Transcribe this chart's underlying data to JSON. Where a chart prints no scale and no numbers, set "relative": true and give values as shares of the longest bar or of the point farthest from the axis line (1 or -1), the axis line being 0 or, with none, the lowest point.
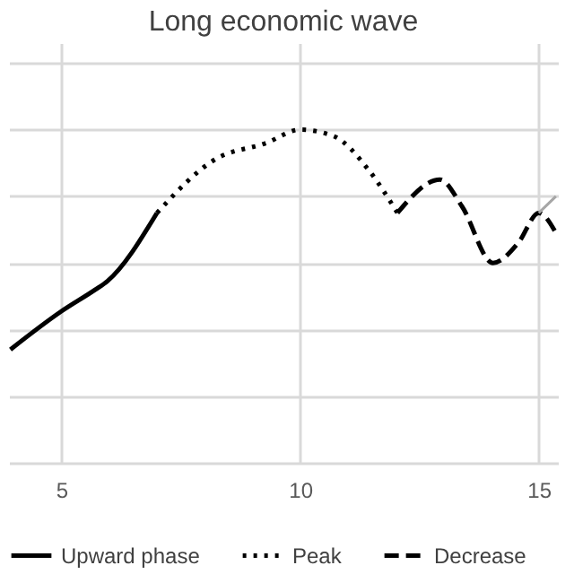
{
  "chart_data": {
    "type": "line",
    "title": "Long economic wave",
    "relative": true,
    "grid": true,
    "legend": "bottom",
    "marker": "none",
    "xlim": [
      3.9,
      15.4
    ],
    "xticks": [
      5,
      10,
      15
    ],
    "series": [
      {
        "name": "Upward phase",
        "color": "#000000",
        "line_style": "solid",
        "x": [
          3.93,
          5,
          5.71,
          5.96,
          7
        ],
        "values": [
          0.34,
          0.455,
          0.52,
          0.545,
          0.75
        ]
      },
      {
        "name": "Peak",
        "color": "#000000",
        "line_style": "dotted",
        "x": [
          7,
          8.21,
          9.29,
          10,
          10.71,
          11.43,
          12.04
        ],
        "values": [
          0.75,
          0.91,
          0.96,
          1,
          0.98,
          0.88,
          0.75
        ]
      },
      {
        "name": "Decrease",
        "color": "#000000",
        "line_style": "dashed",
        "x": [
          12.04,
          12.93,
          13.39,
          14.04,
          14.57,
          15,
          15.36
        ],
        "values": [
          0.75,
          0.85,
          0.77,
          0.6,
          0.66,
          0.75,
          0.69
        ]
      },
      {
        "color": "#a6a6a6",
        "line_style": "solid",
        "x": [
          15,
          15.36
        ],
        "values": [
          0.75,
          0.8
        ]
      }
    ]
  }
}
